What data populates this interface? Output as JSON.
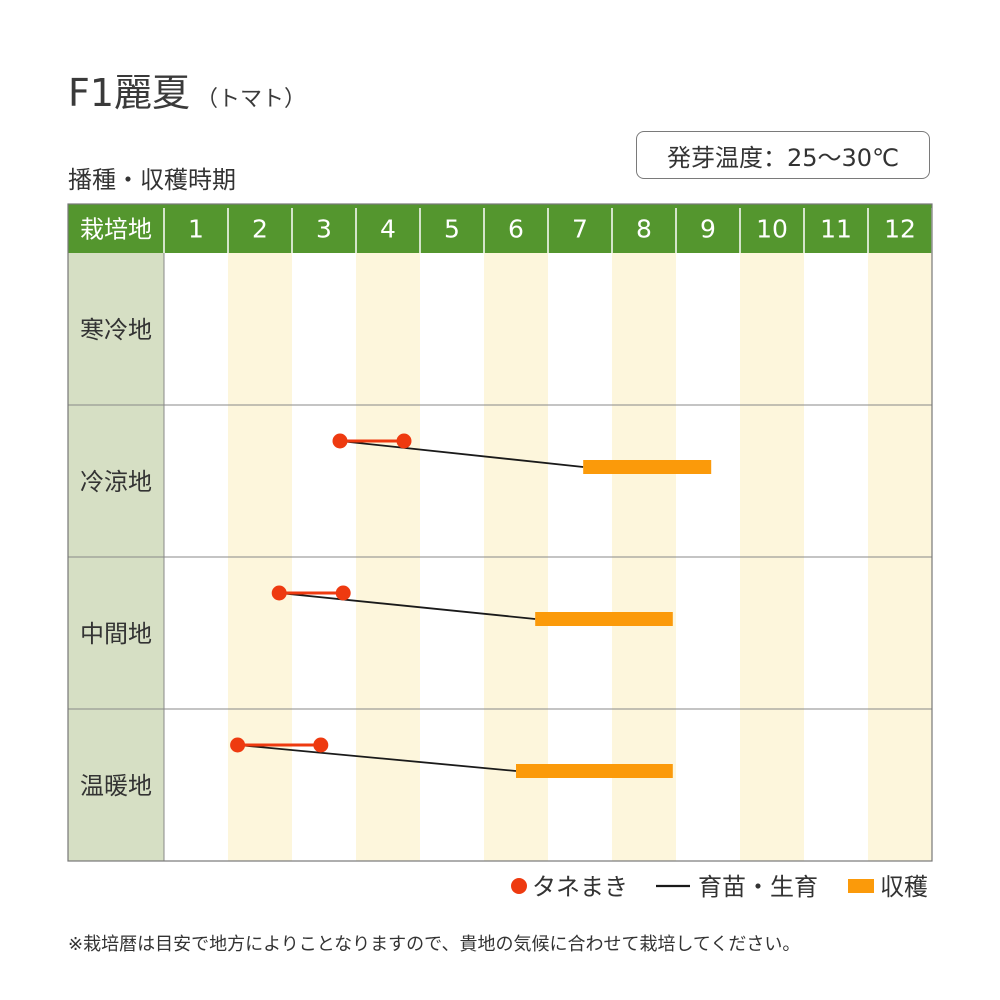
{
  "title": "F1麗夏",
  "title_sub": "（トマト）",
  "subtitle": "播種・収穫時期",
  "temp_label": "発芽温度：25〜30℃",
  "note": "※栽培暦は目安で地方によりことなりますので、貴地の気候に合わせて栽培してください。",
  "colors": {
    "header_green": "#54962e",
    "row_label_bg": "#d6dfc4",
    "alt_column": "#fdf6dc",
    "sowing": "#ee3a10",
    "growing": "#1a1a1a",
    "harvest": "#fb9a0a"
  },
  "chart_data": {
    "type": "table",
    "header_label": "栽培地",
    "months": [
      "1",
      "2",
      "3",
      "4",
      "5",
      "6",
      "7",
      "8",
      "9",
      "10",
      "11",
      "12"
    ],
    "regions": [
      {
        "name": "寒冷地",
        "sowing": null,
        "harvest": null
      },
      {
        "name": "冷涼地",
        "sowing": [
          3.75,
          4.75
        ],
        "harvest": [
          7.55,
          9.55
        ]
      },
      {
        "name": "中間地",
        "sowing": [
          2.8,
          3.8
        ],
        "harvest": [
          6.8,
          8.95
        ]
      },
      {
        "name": "温暖地",
        "sowing": [
          2.15,
          3.45
        ],
        "harvest": [
          6.5,
          8.95
        ]
      }
    ],
    "legend": [
      {
        "key": "sowing",
        "label": "タネまき",
        "marker": "dot"
      },
      {
        "key": "growing",
        "label": "育苗・生育",
        "marker": "line"
      },
      {
        "key": "harvest",
        "label": "収穫",
        "marker": "bar"
      }
    ]
  }
}
